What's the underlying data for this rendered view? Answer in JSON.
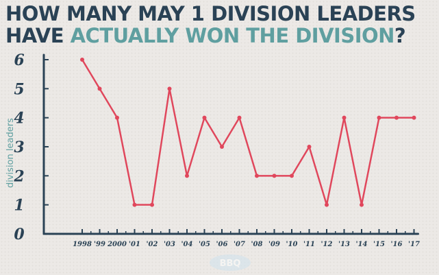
{
  "title": {
    "line1": "HOW MANY MAY 1 DIVISION LEADERS",
    "line2_prefix": "HAVE ",
    "line2_accent": "ACTUALLY WON THE DIVISION",
    "line2_suffix": "?"
  },
  "colors": {
    "title": "#2a4255",
    "accent": "#5f9fa0",
    "line": "#e0475c",
    "axis": "#2a4255",
    "background": "#ece9e6"
  },
  "watermark": {
    "label": "BBQ"
  },
  "chart_data": {
    "type": "line",
    "title": "HOW MANY MAY 1 DIVISION LEADERS HAVE ACTUALLY WON THE DIVISION?",
    "xlabel": "",
    "ylabel": "division leaders",
    "categories": [
      "1998",
      "'99",
      "2000",
      "'01",
      "'02",
      "'03",
      "'04",
      "'05",
      "'06",
      "'07",
      "'08",
      "'09",
      "'10",
      "'11",
      "'12",
      "'13",
      "'14",
      "'15",
      "'16",
      "'17"
    ],
    "series": [
      {
        "values": [
          6,
          5,
          4,
          1,
          1,
          5,
          2,
          4,
          3,
          4,
          2,
          2,
          2,
          3,
          1,
          4,
          1,
          4,
          4,
          4
        ]
      }
    ],
    "yticks": [
      0,
      1,
      2,
      3,
      4,
      5,
      6
    ],
    "ylim": [
      0,
      6
    ],
    "grid": false,
    "legend": "none"
  }
}
